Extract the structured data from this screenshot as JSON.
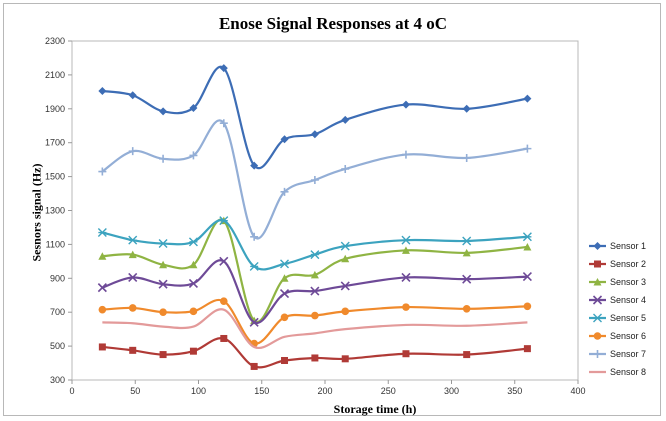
{
  "chart_data": {
    "type": "line",
    "title": "Enose Signal Responses at 4 oC",
    "xlabel": "Storage time (h)",
    "ylabel": "Sesnors signal (Hz)",
    "xlim": [
      0,
      400
    ],
    "ylim": [
      300,
      2300
    ],
    "xticks": [
      0,
      50,
      100,
      150,
      200,
      250,
      300,
      350,
      400
    ],
    "yticks": [
      300,
      500,
      700,
      900,
      1100,
      1300,
      1500,
      1700,
      1900,
      2100,
      2300
    ],
    "grid": false,
    "legend_position": "right",
    "x": [
      24,
      48,
      72,
      96,
      120,
      144,
      168,
      192,
      216,
      264,
      312,
      360
    ],
    "series": [
      {
        "name": "Sensor 1",
        "color": "#3d6db5",
        "marker": "diamond",
        "values": [
          2005,
          1980,
          1885,
          1905,
          2140,
          1565,
          1720,
          1750,
          1835,
          1925,
          1900,
          1960
        ]
      },
      {
        "name": "Sensor 2",
        "color": "#b03a36",
        "marker": "square",
        "values": [
          495,
          475,
          450,
          470,
          545,
          380,
          415,
          430,
          425,
          455,
          450,
          485
        ]
      },
      {
        "name": "Sensor 3",
        "color": "#8fb443",
        "marker": "triangle",
        "values": [
          1030,
          1040,
          980,
          980,
          1240,
          650,
          900,
          920,
          1015,
          1065,
          1050,
          1085
        ]
      },
      {
        "name": "Sensor 4",
        "color": "#6e4a97",
        "marker": "x",
        "values": [
          845,
          905,
          865,
          870,
          1000,
          640,
          810,
          825,
          855,
          905,
          895,
          910
        ]
      },
      {
        "name": "Sensor 5",
        "color": "#3ca3bf",
        "marker": "star",
        "values": [
          1170,
          1125,
          1105,
          1115,
          1240,
          970,
          985,
          1040,
          1090,
          1125,
          1120,
          1145
        ]
      },
      {
        "name": "Sensor 6",
        "color": "#f08a2c",
        "marker": "circle",
        "values": [
          715,
          725,
          700,
          705,
          765,
          515,
          670,
          680,
          705,
          730,
          720,
          735
        ]
      },
      {
        "name": "Sensor 7",
        "color": "#93aed6",
        "marker": "plus",
        "values": [
          1530,
          1650,
          1605,
          1625,
          1815,
          1145,
          1410,
          1480,
          1545,
          1630,
          1610,
          1665
        ]
      },
      {
        "name": "Sensor 8",
        "color": "#e39a9a",
        "marker": "none",
        "values": [
          640,
          635,
          615,
          615,
          715,
          495,
          555,
          575,
          600,
          625,
          620,
          640
        ]
      }
    ]
  }
}
